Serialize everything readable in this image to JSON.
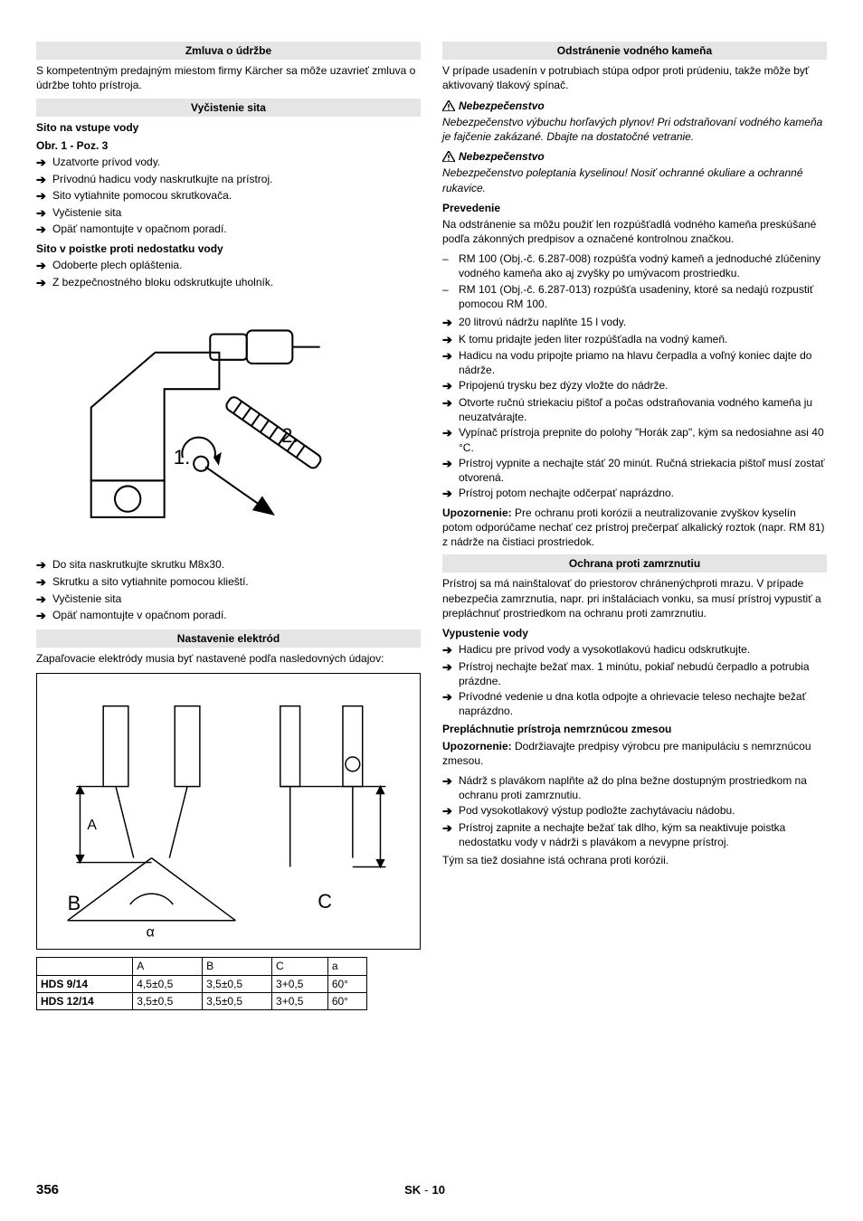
{
  "left": {
    "h1": "Zmluva o údržbe",
    "p1": "S kompetentným predajným miestom firmy Kärcher sa môže uzavrieť zmluva o údržbe tohto prístroja.",
    "h2": "Vyčistenie sita",
    "s1_title": "Sito na vstupe vody",
    "s1_sub": "Obr. 1 - Poz. 3",
    "s1_items": [
      "Uzatvorte prívod vody.",
      "Prívodnú hadicu vody naskrutkujte na prístroj.",
      "Sito vytiahnite pomocou skrutkovača.",
      "Vyčistenie sita",
      "Opäť namontujte v opačnom poradí."
    ],
    "s2_title": "Sito v poistke proti nedostatku vody",
    "s2_items": [
      "Odoberte plech opláštenia.",
      "Z bezpečnostného bloku odskrutkujte uholník."
    ],
    "s2_items_after": [
      "Do sita naskrutkujte skrutku M8x30.",
      "Skrutku a sito vytiahnite pomocou klieští.",
      "Vyčistenie sita",
      "Opäť namontujte v opačnom poradí."
    ],
    "h3": "Nastavenie elektród",
    "p3": "Zapaľovacie elektródy musia byť nastavené podľa nasledovných údajov:",
    "table": {
      "cols": [
        "",
        "A",
        "B",
        "C",
        "a"
      ],
      "rows": [
        [
          "HDS 9/14",
          "4,5±0,5",
          "3,5±0,5",
          "3+0,5",
          "60°"
        ],
        [
          "HDS 12/14",
          "3,5±0,5",
          "3,5±0,5",
          "3+0,5",
          "60°"
        ]
      ]
    },
    "fig1": {
      "n1": "1.",
      "n2": "2."
    },
    "fig2": {
      "B": "B",
      "C": "C",
      "A": "A",
      "alpha": "α"
    }
  },
  "right": {
    "h1": "Odstránenie vodného kameňa",
    "p1": "V prípade usadenín v potrubiach stúpa odpor proti prúdeniu, takže môže byť aktivovaný tlakový spínač.",
    "warn1": "Nebezpečenstvo",
    "warn1_txt": "Nebezpečenstvo výbuchu horľavých plynov! Pri odstraňovaní vodného kameňa je fajčenie zakázané. Dbajte na dostatočné vetranie.",
    "warn2": "Nebezpečenstvo",
    "warn2_txt": "Nebezpečenstvo poleptania kyselinou! Nosiť ochranné okuliare a ochranné rukavice.",
    "prov_title": "Prevedenie",
    "prov_intro": "Na odstránenie sa môžu použiť len rozpúšťadlá vodného kameňa preskúšané podľa zákonných predpisov a označené kontrolnou značkou.",
    "dash_items": [
      "RM 100 (Obj.-č. 6.287-008) rozpúšťa vodný kameň a jednoduché zlúčeniny vodného kameňa ako aj zvyšky po umývacom prostriedku.",
      "RM 101 (Obj.-č. 6.287-013) rozpúšťa usadeniny, ktoré sa nedajú rozpustiť pomocou RM 100."
    ],
    "arrow_items": [
      "20 litrovú nádržu naplňte 15 l vody.",
      "K tomu pridajte jeden liter rozpúšťadla na vodný kameň.",
      "Hadicu na vodu pripojte priamo na hlavu čerpadla a voľný koniec dajte do nádrže.",
      "Pripojenú trysku bez dýzy vložte do nádrže.",
      "Otvorte ručnú striekaciu pištoľ a počas odstraňovania vodného kameňa ju neuzatvárajte.",
      "Vypínač prístroja prepnite do polohy \"Horák zap\", kým sa nedosiahne asi 40 °C.",
      "Prístroj vypnite a nechajte stáť 20 minút. Ručná striekacia pištoľ musí zostať otvorená.",
      "Prístroj potom nechajte odčerpať naprázdno."
    ],
    "notice_label": "Upozornenie:",
    "notice_txt": " Pre ochranu proti korózii a neutralizovanie zvyškov kyselín potom odporúčame nechať cez prístroj prečerpať alkalický roztok (napr. RM 81) z nádrže na čistiaci prostriedok.",
    "h2": "Ochrana proti zamrznutiu",
    "p2": "Prístroj sa má nainštalovať do priestorov chránenýchproti mrazu. V prípade nebezpečia zamrznutia, napr. pri inštaláciach vonku, sa musí prístroj vypustiť a prepláchnuť prostriedkom na ochranu proti zamrznutiu.",
    "s3_title": "Vypustenie vody",
    "s3_items": [
      "Hadicu pre prívod vody a vysokotlakovú hadicu odskrutkujte.",
      "Prístroj nechajte bežať max. 1 minútu, pokiaľ nebudú čerpadlo a potrubia prázdne.",
      "Prívodné vedenie u dna kotla odpojte a ohrievacie teleso nechajte bežať naprázdno."
    ],
    "s4_title": "Prepláchnutie prístroja nemrznúcou zmesou",
    "s4_notice_label": "Upozornenie:",
    "s4_notice_txt": " Dodržiavajte predpisy výrobcu pre manipuláciu s nemrznúcou zmesou.",
    "s4_items": [
      "Nádrž s plavákom naplňte až do plna bežne dostupným prostriedkom na ochranu proti zamrznutiu.",
      "Pod vysokotlakový výstup podložte zachytávaciu nádobu.",
      "Prístroj zapnite a nechajte bežať tak dlho, kým sa neaktivuje poistka nedostatku vody v nádrži s plavákom a nevypne prístroj."
    ],
    "s4_end": "Tým sa tiež dosiahne istá ochrana proti korózii."
  },
  "footer": {
    "page": "356",
    "lang": "SK",
    "num": "10"
  }
}
